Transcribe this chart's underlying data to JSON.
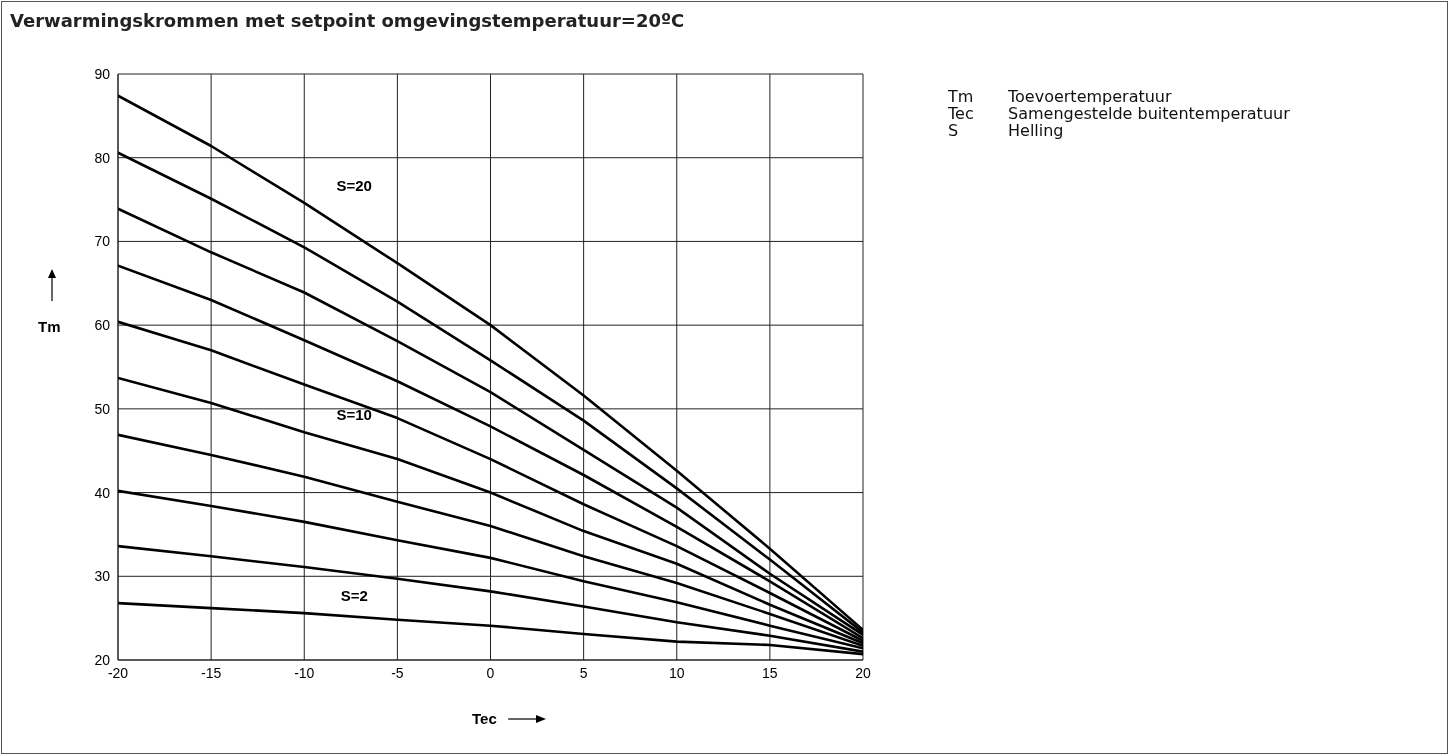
{
  "chart_data": {
    "type": "line",
    "title": "Verwarmingskrommen met setpoint omgevingstemperatuur=20ºC",
    "xlabel": "Tec",
    "ylabel": "Tm",
    "x": [
      -20,
      -15,
      -10,
      -5,
      0,
      5,
      10,
      15,
      20
    ],
    "series": [
      {
        "name": "S=2",
        "color": "#000000",
        "values": [
          26.8,
          26.2,
          25.6,
          24.8,
          24.1,
          23.1,
          22.2,
          21.8,
          20.7
        ]
      },
      {
        "color": "#000000",
        "values": [
          33.6,
          32.4,
          31.1,
          29.7,
          28.2,
          26.4,
          24.5,
          22.9,
          21.0
        ]
      },
      {
        "color": "#000000",
        "values": [
          40.2,
          38.4,
          36.5,
          34.3,
          32.2,
          29.4,
          26.9,
          24.1,
          21.4
        ]
      },
      {
        "color": "#000000",
        "values": [
          46.9,
          44.5,
          41.9,
          38.9,
          36.0,
          32.4,
          29.2,
          25.5,
          21.7
        ]
      },
      {
        "name": "S=10",
        "color": "#000000",
        "values": [
          53.7,
          50.7,
          47.2,
          44.0,
          40.0,
          35.4,
          31.5,
          26.6,
          22.0
        ]
      },
      {
        "color": "#000000",
        "values": [
          60.4,
          57.0,
          52.9,
          48.9,
          44.0,
          38.6,
          33.6,
          28.0,
          22.3
        ]
      },
      {
        "color": "#000000",
        "values": [
          67.1,
          63.0,
          58.2,
          53.3,
          47.9,
          42.1,
          35.9,
          29.4,
          22.6
        ]
      },
      {
        "color": "#000000",
        "values": [
          73.9,
          68.7,
          63.9,
          58.1,
          52.0,
          45.1,
          38.2,
          30.3,
          23.0
        ]
      },
      {
        "color": "#000000",
        "values": [
          80.6,
          75.1,
          69.3,
          62.8,
          55.8,
          48.6,
          40.5,
          32.0,
          23.3
        ]
      },
      {
        "name": "S=20",
        "color": "#000000",
        "values": [
          87.4,
          81.4,
          74.6,
          67.4,
          60.0,
          51.6,
          42.6,
          33.3,
          23.6
        ]
      }
    ],
    "xlim": [
      -20,
      20
    ],
    "xticks": [
      -20,
      -15,
      -10,
      -5,
      0,
      5,
      10,
      15,
      20
    ],
    "ylim": [
      20,
      90
    ],
    "yticks": [
      20,
      30,
      40,
      50,
      60,
      70,
      80,
      90
    ],
    "grid": true,
    "marker": "none",
    "line_style": "solid",
    "annotations": [
      "Tm Toevoertemperatuur",
      "Tec Samengestelde buitentemperatuur",
      "S Helling"
    ]
  }
}
